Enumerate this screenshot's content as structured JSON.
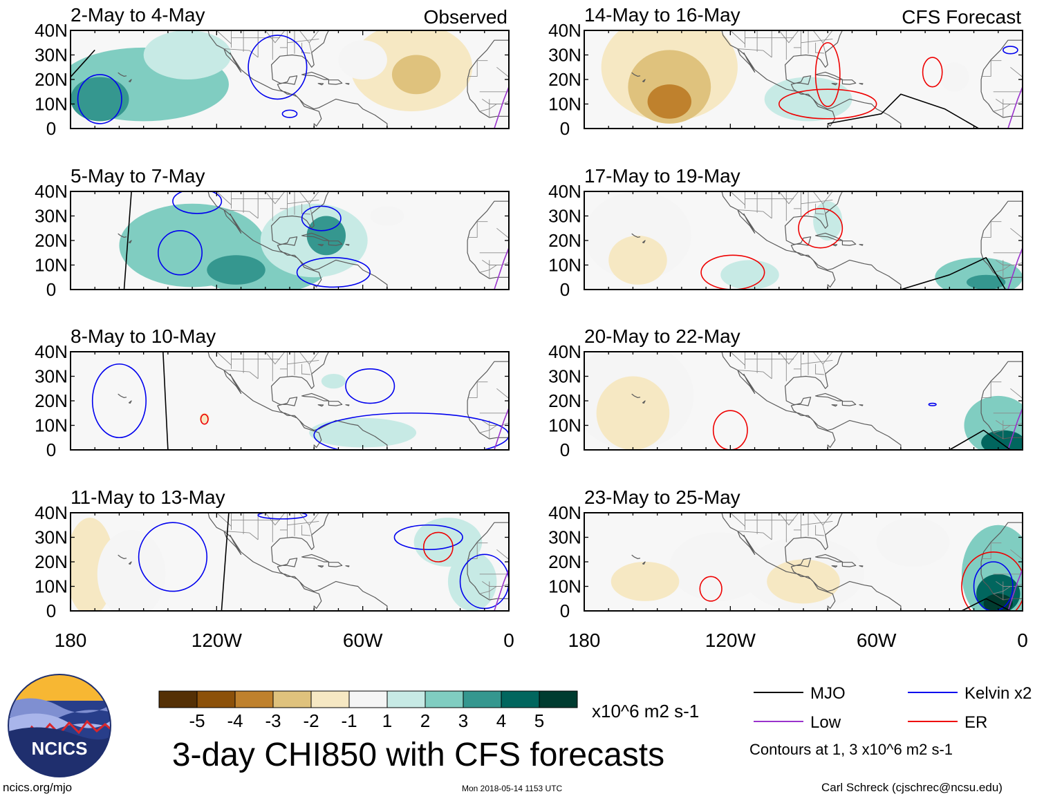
{
  "page": {
    "title": "3-day CHI850 with CFS forecasts",
    "units": "x10^6 m2 s-1",
    "site": "ncics.org/mjo",
    "timestamp": "Mon 2018-05-14 1153 UTC",
    "author": "Carl Schreck (cjschrec@ncsu.edu)",
    "logo_text": "NCICS",
    "contour_note": "Contours at 1, 3 x10^6 m2 s-1"
  },
  "chart_data": {
    "type": "heatmap",
    "columns": [
      {
        "label": "Observed",
        "panels": [
          "2-May to 4-May",
          "5-May to 7-May",
          "8-May to 10-May",
          "11-May to 13-May"
        ]
      },
      {
        "label": "CFS Forecast",
        "panels": [
          "14-May to 16-May",
          "17-May to 19-May",
          "20-May to 22-May",
          "23-May to 25-May"
        ]
      }
    ],
    "y_ticks": [
      "40N",
      "30N",
      "20N",
      "10N",
      "0"
    ],
    "x_ticks": [
      "180",
      "120W",
      "60W",
      "0"
    ],
    "lon_range": [
      -180,
      0
    ],
    "lat_range": [
      0,
      40
    ],
    "colorbar": {
      "ticks": [
        "-5",
        "-4",
        "-3",
        "-2",
        "-1",
        "1",
        "2",
        "3",
        "4",
        "5"
      ],
      "bounds": [
        -6,
        -5,
        -4,
        -3,
        -2,
        -1,
        1,
        2,
        3,
        4,
        5,
        6
      ],
      "colors": [
        "#543005",
        "#8c510a",
        "#bf812d",
        "#dfc27d",
        "#f6e8c3",
        "#f5f5f5",
        "#c7eae5",
        "#80cdc1",
        "#35978f",
        "#01665e",
        "#003c30"
      ]
    },
    "legend": [
      {
        "name": "MJO",
        "color": "#000000"
      },
      {
        "name": "Kelvin x2",
        "color": "#0000ee"
      },
      {
        "name": "Low",
        "color": "#9932cc"
      },
      {
        "name": "ER",
        "color": "#ee0000"
      }
    ],
    "panel_blobs": [
      [
        {
          "lon": -150,
          "lat": 18,
          "rx": 35,
          "ry": 15,
          "v": 2
        },
        {
          "lon": -168,
          "lat": 12,
          "rx": 12,
          "ry": 9,
          "v": 3
        },
        {
          "lon": -132,
          "lat": 30,
          "rx": 18,
          "ry": 10,
          "v": 1
        },
        {
          "lon": -40,
          "lat": 25,
          "rx": 25,
          "ry": 18,
          "v": -2
        },
        {
          "lon": -38,
          "lat": 22,
          "rx": 10,
          "ry": 8,
          "v": -3
        },
        {
          "lon": -60,
          "lat": 28,
          "rx": 10,
          "ry": 8,
          "v": -1
        }
      ],
      [
        {
          "lon": -130,
          "lat": 18,
          "rx": 30,
          "ry": 17,
          "v": 2
        },
        {
          "lon": -102,
          "lat": 10,
          "rx": 28,
          "ry": 12,
          "v": 2
        },
        {
          "lon": -80,
          "lat": 20,
          "rx": 22,
          "ry": 15,
          "v": 1
        },
        {
          "lon": -75,
          "lat": 22,
          "rx": 8,
          "ry": 8,
          "v": 3
        },
        {
          "lon": -112,
          "lat": 8,
          "rx": 12,
          "ry": 6,
          "v": 3
        },
        {
          "lon": -50,
          "lat": 30,
          "rx": 7,
          "ry": 4,
          "v": -1
        }
      ],
      [
        {
          "lon": -125,
          "lat": 13,
          "rx": 2,
          "ry": 2,
          "v": -2
        },
        {
          "lon": -60,
          "lat": 7,
          "rx": 22,
          "ry": 6,
          "v": 1
        },
        {
          "lon": -72,
          "lat": 28,
          "rx": 5,
          "ry": 3,
          "v": 1
        }
      ],
      [
        {
          "lon": -172,
          "lat": 18,
          "rx": 10,
          "ry": 20,
          "v": -2
        },
        {
          "lon": -155,
          "lat": 15,
          "rx": 14,
          "ry": 18,
          "v": -1
        },
        {
          "lon": -25,
          "lat": 28,
          "rx": 14,
          "ry": 10,
          "v": 1
        },
        {
          "lon": -15,
          "lat": 12,
          "rx": 10,
          "ry": 12,
          "v": 1
        }
      ],
      [
        {
          "lon": -145,
          "lat": 25,
          "rx": 28,
          "ry": 22,
          "v": -2
        },
        {
          "lon": -145,
          "lat": 17,
          "rx": 17,
          "ry": 15,
          "v": -3
        },
        {
          "lon": -145,
          "lat": 11,
          "rx": 9,
          "ry": 7,
          "v": -4
        },
        {
          "lon": -88,
          "lat": 12,
          "rx": 18,
          "ry": 9,
          "v": 1
        },
        {
          "lon": -28,
          "lat": 21,
          "rx": 6,
          "ry": 6,
          "v": -1
        }
      ],
      [
        {
          "lon": -158,
          "lat": 22,
          "rx": 22,
          "ry": 18,
          "v": -1
        },
        {
          "lon": -158,
          "lat": 12,
          "rx": 12,
          "ry": 10,
          "v": -2
        },
        {
          "lon": -112,
          "lat": 6,
          "rx": 12,
          "ry": 6,
          "v": 1
        },
        {
          "lon": -80,
          "lat": 28,
          "rx": 6,
          "ry": 8,
          "v": 1
        },
        {
          "lon": -18,
          "lat": 5,
          "rx": 18,
          "ry": 8,
          "v": 2
        },
        {
          "lon": -15,
          "lat": 3,
          "rx": 8,
          "ry": 3,
          "v": 3
        }
      ],
      [
        {
          "lon": -160,
          "lat": 22,
          "rx": 25,
          "ry": 22,
          "v": -1
        },
        {
          "lon": -160,
          "lat": 15,
          "rx": 15,
          "ry": 15,
          "v": -2
        },
        {
          "lon": -10,
          "lat": 10,
          "rx": 14,
          "ry": 12,
          "v": 2
        },
        {
          "lon": -8,
          "lat": 3,
          "rx": 9,
          "ry": 5,
          "v": 4
        }
      ],
      [
        {
          "lon": -125,
          "lat": 18,
          "rx": 20,
          "ry": 14,
          "v": -1
        },
        {
          "lon": -90,
          "lat": 15,
          "rx": 25,
          "ry": 15,
          "v": -1
        },
        {
          "lon": -90,
          "lat": 12,
          "rx": 15,
          "ry": 9,
          "v": -2
        },
        {
          "lon": -45,
          "lat": 28,
          "rx": 15,
          "ry": 10,
          "v": -1
        },
        {
          "lon": -155,
          "lat": 12,
          "rx": 14,
          "ry": 8,
          "v": -2
        },
        {
          "lon": -10,
          "lat": 15,
          "rx": 15,
          "ry": 20,
          "v": 2
        },
        {
          "lon": -10,
          "lat": 7,
          "rx": 9,
          "ry": 8,
          "v": 4
        },
        {
          "lon": -10,
          "lat": 3,
          "rx": 6,
          "ry": 4,
          "v": 5
        }
      ]
    ],
    "panel_contours": [
      [
        {
          "kind": "Kelvin x2",
          "lon": -168,
          "lat": 12,
          "rx": 9,
          "ry": 10
        },
        {
          "kind": "Kelvin x2",
          "lon": -95,
          "lat": 25,
          "rx": 12,
          "ry": 13
        },
        {
          "kind": "Kelvin x2",
          "lon": -90,
          "lat": 6,
          "rx": 3,
          "ry": 1.5
        }
      ],
      [
        {
          "kind": "Kelvin x2",
          "lon": -135,
          "lat": 15,
          "rx": 9,
          "ry": 9
        },
        {
          "kind": "Kelvin x2",
          "lon": -128,
          "lat": 36,
          "rx": 10,
          "ry": 5
        },
        {
          "kind": "Kelvin x2",
          "lon": -77,
          "lat": 29,
          "rx": 8,
          "ry": 5
        },
        {
          "kind": "Kelvin x2",
          "lon": -72,
          "lat": 7,
          "rx": 15,
          "ry": 6
        }
      ],
      [
        {
          "kind": "Kelvin x2",
          "lon": -160,
          "lat": 20,
          "rx": 11,
          "ry": 15
        },
        {
          "kind": "Kelvin x2",
          "lon": -57,
          "lat": 26,
          "rx": 10,
          "ry": 7
        },
        {
          "kind": "Kelvin x2",
          "lon": -40,
          "lat": 6,
          "rx": 40,
          "ry": 9
        },
        {
          "kind": "ER",
          "lon": -125,
          "lat": 12.5,
          "rx": 1.5,
          "ry": 2
        }
      ],
      [
        {
          "kind": "Kelvin x2",
          "lon": -138,
          "lat": 22,
          "rx": 14,
          "ry": 14
        },
        {
          "kind": "Kelvin x2",
          "lon": -93,
          "lat": 39,
          "rx": 10,
          "ry": 1.5
        },
        {
          "kind": "Kelvin x2",
          "lon": -33,
          "lat": 30,
          "rx": 14,
          "ry": 5
        },
        {
          "kind": "ER",
          "lon": -29,
          "lat": 26,
          "rx": 6,
          "ry": 6
        },
        {
          "kind": "Kelvin x2",
          "lon": -10,
          "lat": 12,
          "rx": 10,
          "ry": 11
        }
      ],
      [
        {
          "kind": "ER",
          "lon": -80,
          "lat": 10,
          "rx": 20,
          "ry": 6
        },
        {
          "kind": "ER",
          "lon": -80,
          "lat": 22,
          "rx": 5,
          "ry": 13
        },
        {
          "kind": "ER",
          "lon": -37,
          "lat": 23,
          "rx": 4,
          "ry": 6
        },
        {
          "kind": "Kelvin x2",
          "lon": -5,
          "lat": 32,
          "rx": 3,
          "ry": 1.5
        }
      ],
      [
        {
          "kind": "ER",
          "lon": -119,
          "lat": 7,
          "rx": 13,
          "ry": 7
        },
        {
          "kind": "ER",
          "lon": -83,
          "lat": 25,
          "rx": 9,
          "ry": 8
        }
      ],
      [
        {
          "kind": "ER",
          "lon": -120,
          "lat": 8,
          "rx": 7,
          "ry": 8
        },
        {
          "kind": "Kelvin x2",
          "lon": -37,
          "lat": 18.5,
          "rx": 1.5,
          "ry": 0.5
        }
      ],
      [
        {
          "kind": "ER",
          "lon": -128,
          "lat": 9,
          "rx": 4.5,
          "ry": 5
        },
        {
          "kind": "ER",
          "lon": -12,
          "lat": 10,
          "rx": 13,
          "ry": 14
        },
        {
          "kind": "Kelvin x2",
          "lon": -12,
          "lat": 10,
          "rx": 8,
          "ry": 10
        }
      ]
    ],
    "panel_mjo": [
      [
        [
          -170,
          32
        ],
        [
          -180,
          21
        ]
      ],
      [
        [
          -155,
          40
        ],
        [
          -158,
          0
        ]
      ],
      [
        [
          -142,
          40
        ],
        [
          -140,
          0
        ]
      ],
      [
        [
          -115,
          40
        ],
        [
          -118,
          0
        ]
      ],
      [
        [
          -80,
          2
        ],
        [
          -58,
          6
        ],
        [
          -50,
          14
        ],
        [
          -32,
          8
        ],
        [
          -18,
          0
        ]
      ],
      [
        [
          -50,
          0
        ],
        [
          -30,
          6
        ],
        [
          -15,
          13
        ],
        [
          -7,
          0
        ]
      ],
      [
        [
          -30,
          0
        ],
        [
          -16,
          8
        ],
        [
          -5,
          0
        ]
      ],
      [
        [
          -25,
          0
        ],
        [
          -15,
          5
        ],
        [
          -5,
          0
        ]
      ]
    ]
  }
}
